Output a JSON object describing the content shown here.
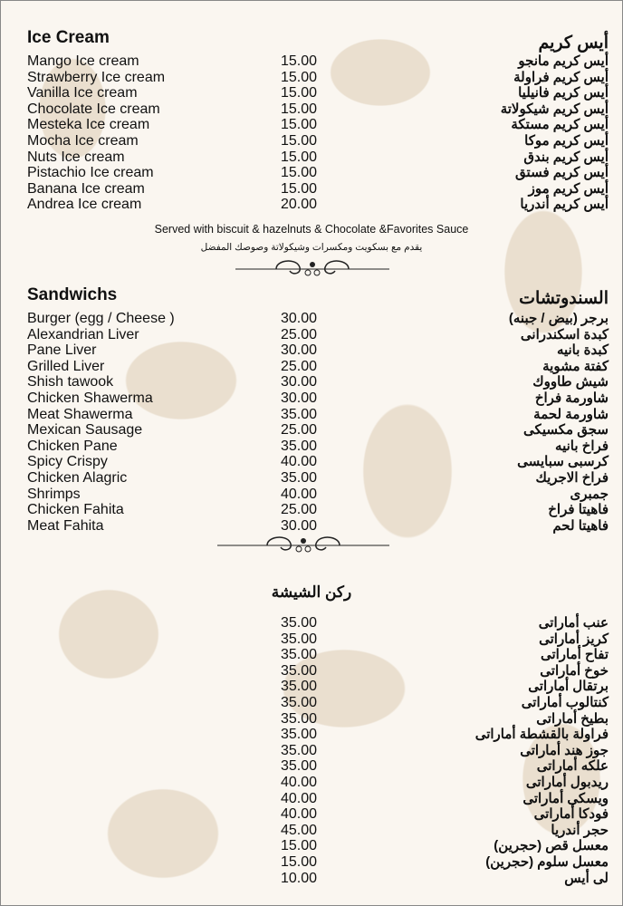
{
  "ice_cream": {
    "title_en": "Ice Cream",
    "title_ar": "أيس كريم",
    "items": [
      {
        "en": "Mango Ice cream",
        "price": "15.00",
        "ar": "أيس كريم مانجو"
      },
      {
        "en": "Strawberry Ice cream",
        "price": "15.00",
        "ar": "أيس كريم فراولة"
      },
      {
        "en": "Vanilla Ice cream",
        "price": "15.00",
        "ar": "أيس كريم فانيليا"
      },
      {
        "en": "Chocolate Ice cream",
        "price": "15.00",
        "ar": "أيس كريم شيكولاتة"
      },
      {
        "en": "Mesteka Ice cream",
        "price": "15.00",
        "ar": "أيس كريم مستكة"
      },
      {
        "en": "Mocha Ice cream",
        "price": "15.00",
        "ar": "أيس كريم موكا"
      },
      {
        "en": "Nuts Ice cream",
        "price": "15.00",
        "ar": "أيس كريم بندق"
      },
      {
        "en": "Pistachio Ice cream",
        "price": "15.00",
        "ar": "أيس كريم فستق"
      },
      {
        "en": "Banana Ice cream",
        "price": "15.00",
        "ar": "أيس كريم موز"
      },
      {
        "en": "Andrea Ice cream",
        "price": "20.00",
        "ar": "أيس كريم أندريا"
      }
    ],
    "note_en": "Served with biscuit & hazelnuts & Chocolate &Favorites Sauce",
    "note_ar": "يقدم مع بسكويت ومكسرات وشيكولاتة وصوصك المفضل"
  },
  "sandwiches": {
    "title_en": "Sandwichs",
    "title_ar": "السندوتشات",
    "items": [
      {
        "en": "Burger (egg / Cheese )",
        "price": "30.00",
        "ar": "برجر (بيض / جبنه)"
      },
      {
        "en": "Alexandrian Liver",
        "price": "25.00",
        "ar": "كبدة اسكندرانى"
      },
      {
        "en": "Pane Liver",
        "price": "30.00",
        "ar": "كبدة بانيه"
      },
      {
        "en": "Grilled Liver",
        "price": "25.00",
        "ar": "كفتة مشوية"
      },
      {
        "en": "Shish tawook",
        "price": "30.00",
        "ar": "شيش طاووك"
      },
      {
        "en": "Chicken Shawerma",
        "price": "30.00",
        "ar": "شاورمة فراخ"
      },
      {
        "en": "Meat Shawerma",
        "price": "35.00",
        "ar": "شاورمة لحمة"
      },
      {
        "en": "Mexican Sausage",
        "price": "25.00",
        "ar": "سجق مكسيكى"
      },
      {
        "en": "Chicken Pane",
        "price": "35.00",
        "ar": "فراخ بانيه"
      },
      {
        "en": "Spicy Crispy",
        "price": "40.00",
        "ar": "كرسبى سبايسى"
      },
      {
        "en": "Chicken Alagric",
        "price": "35.00",
        "ar": "فراخ الاجريك"
      },
      {
        "en": "Shrimps",
        "price": "40.00",
        "ar": "جمبرى"
      },
      {
        "en": "Chicken Fahita",
        "price": "25.00",
        "ar": "فاهيتا فراخ"
      },
      {
        "en": "Meat Fahita",
        "price": "30.00",
        "ar": "فاهيتا لحم"
      }
    ]
  },
  "shisha": {
    "title_ar": "ركن الشيشة",
    "items": [
      {
        "price": "35.00",
        "ar": "عنب أماراتى"
      },
      {
        "price": "35.00",
        "ar": "كريز أماراتى"
      },
      {
        "price": "35.00",
        "ar": "تفاح أماراتى"
      },
      {
        "price": "35.00",
        "ar": "خوخ أماراتى"
      },
      {
        "price": "35.00",
        "ar": "برتقال أماراتى"
      },
      {
        "price": "35.00",
        "ar": "كنتالوب أماراتى"
      },
      {
        "price": "35.00",
        "ar": "بطيخ أماراتى"
      },
      {
        "price": "35.00",
        "ar": "فراولة بالقشطة أماراتى"
      },
      {
        "price": "35.00",
        "ar": "جوز هند أماراتى"
      },
      {
        "price": "35.00",
        "ar": "علكه أماراتى"
      },
      {
        "price": "40.00",
        "ar": "ريدبول أماراتى"
      },
      {
        "price": "40.00",
        "ar": "ويسكى أماراتى"
      },
      {
        "price": "40.00",
        "ar": "فودكا أماراتى"
      },
      {
        "price": "45.00",
        "ar": "حجر أندريا"
      },
      {
        "price": "15.00",
        "ar": "معسل قص (حجرين)"
      },
      {
        "price": "15.00",
        "ar": "معسل سلوم (حجرين)"
      },
      {
        "price": "10.00",
        "ar": "لى أيس"
      }
    ]
  },
  "colors": {
    "background": "#faf6f0",
    "pattern": "#eadfcf",
    "text": "#111111"
  }
}
